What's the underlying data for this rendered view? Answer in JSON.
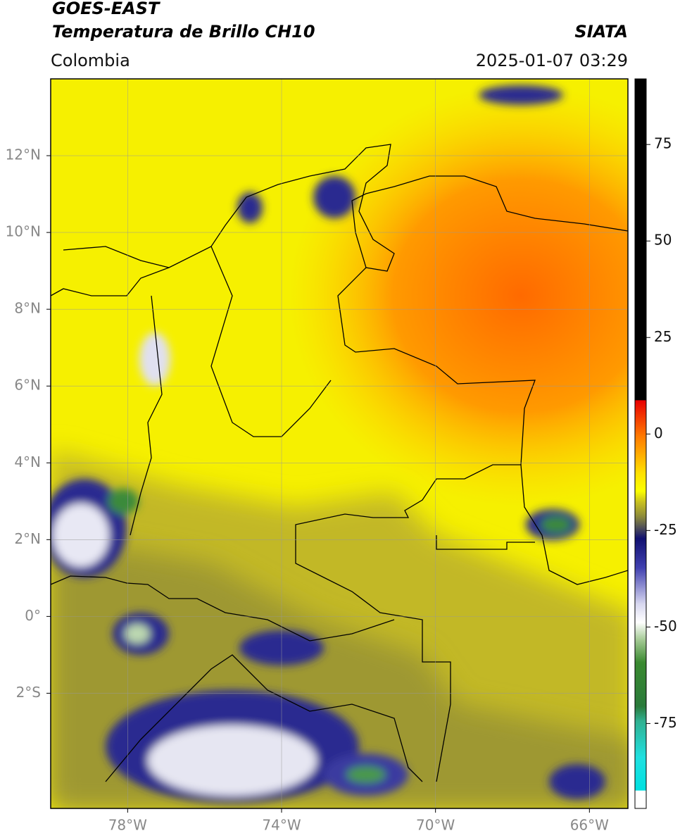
{
  "header": {
    "title": "GOES-EAST",
    "subtitle": "Temperatura de Brillo CH10",
    "source": "SIATA",
    "region": "Colombia",
    "timestamp": "2025-01-07 03:29"
  },
  "map": {
    "xlim": [
      -80,
      -65
    ],
    "ylim": [
      -5,
      14
    ],
    "xticks": [
      {
        "value": -78,
        "label": "78°W"
      },
      {
        "value": -74,
        "label": "74°W"
      },
      {
        "value": -70,
        "label": "70°W"
      },
      {
        "value": -66,
        "label": "66°W"
      }
    ],
    "yticks": [
      {
        "value": 12,
        "label": "12°N"
      },
      {
        "value": 10,
        "label": "10°N"
      },
      {
        "value": 8,
        "label": "8°N"
      },
      {
        "value": 6,
        "label": "6°N"
      },
      {
        "value": 4,
        "label": "4°N"
      },
      {
        "value": 2,
        "label": "2°N"
      },
      {
        "value": 0,
        "label": "0°"
      },
      {
        "value": -2,
        "label": "2°S"
      }
    ],
    "grid": true
  },
  "colorbar": {
    "lim": [
      -97,
      92
    ],
    "ticks": [
      75,
      50,
      25,
      0,
      -25,
      -50,
      -75
    ]
  }
}
